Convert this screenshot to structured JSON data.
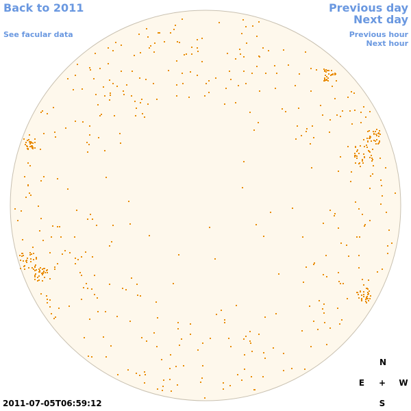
{
  "links": {
    "back_to_year": "Back to 2011",
    "see_facular_data": "See facular data",
    "previous_day": "Previous day",
    "next_day": "Next day",
    "previous_hour": "Previous hour",
    "next_hour": "Next hour"
  },
  "timestamp": "2011-07-05T06:59:12",
  "compass": {
    "north": "N",
    "east": "E",
    "center": "+",
    "west": "W",
    "south": "S"
  }
}
